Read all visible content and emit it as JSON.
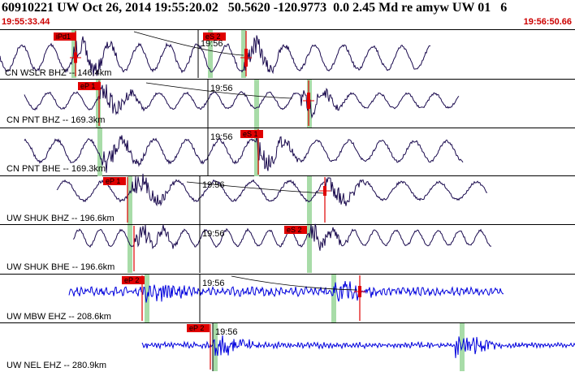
{
  "header": {
    "title": "60910221 UW Oct 26, 2014 19:55:20.02   50.5620 -120.9773  0.0 2.45 Md re amyw UW 01   6",
    "start_time": "19:55:33.44",
    "end_time": "19:56:50.66"
  },
  "colors": {
    "trace_dark": "#1a0a4e",
    "trace_blue": "#0000dd",
    "pick_red": "#e00000",
    "window_green": "#a8dca8",
    "header_red": "#cc0000"
  },
  "traces": [
    {
      "label": "CN WSLR BHZ -- 146.4km",
      "pick": "iPd1",
      "pick2": "eS 2",
      "time_mark": "19:56",
      "color": "dark"
    },
    {
      "label": "CN PNT BHZ -- 169.3km",
      "pick": "eP 1",
      "time_mark": "19:56",
      "color": "dark"
    },
    {
      "label": "CN PNT BHE -- 169.3km",
      "pick": "eS 1",
      "time_mark": "19:56",
      "color": "dark"
    },
    {
      "label": "UW SHUK BHZ -- 196.6km",
      "pick": "eP 1",
      "time_mark": "19:56",
      "color": "dark"
    },
    {
      "label": "UW SHUK BHE -- 196.6km",
      "pick": "eS 2",
      "time_mark": "19:56",
      "color": "dark"
    },
    {
      "label": "UW MBW EHZ -- 208.6km",
      "pick": "eP 2",
      "time_mark": "19:56",
      "color": "blue"
    },
    {
      "label": "UW NEL EHZ -- 280.9km",
      "pick": "eP 2",
      "time_mark": "19:56",
      "color": "blue"
    }
  ]
}
